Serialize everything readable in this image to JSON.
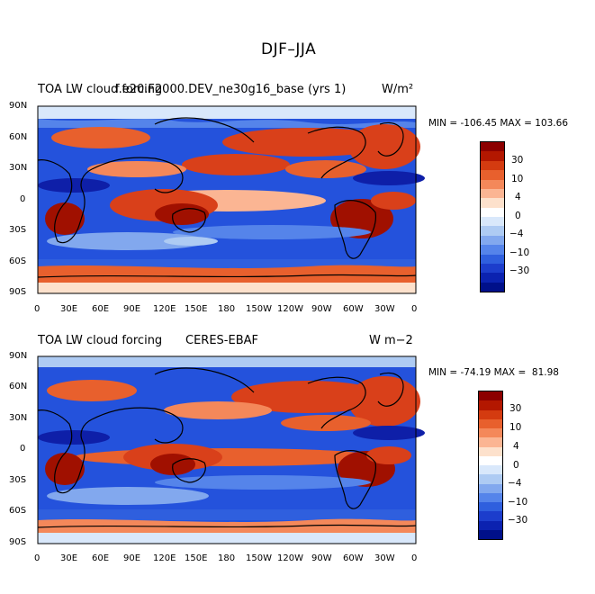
{
  "figure_title": "DJF–JJA",
  "panels": [
    {
      "left_label": "TOA LW cloud forcing",
      "center_label": "f.e20.F2000.DEV_ne30g16_base (yrs 1)",
      "units": "W/m²",
      "stats": "MIN = -106.45 MAX = 103.66",
      "lat_ticks": [
        "90N",
        "60N",
        "30N",
        "0",
        "30S",
        "60S",
        "90S"
      ],
      "lon_ticks": [
        "0",
        "30E",
        "60E",
        "90E",
        "120E",
        "150E",
        "180",
        "150W",
        "120W",
        "90W",
        "60W",
        "30W",
        "0"
      ],
      "colorbar_labels": [
        "30",
        "10",
        "4",
        "0",
        "−4",
        "−10",
        "−30"
      ]
    },
    {
      "left_label": "TOA LW cloud forcing",
      "center_label": "CERES-EBAF",
      "units": "W m−2",
      "stats": "MIN = -74.19 MAX =  81.98",
      "lat_ticks": [
        "90N",
        "60N",
        "30N",
        "0",
        "30S",
        "60S",
        "90S"
      ],
      "lon_ticks": [
        "0",
        "30E",
        "60E",
        "90E",
        "120E",
        "150E",
        "180",
        "150W",
        "120W",
        "90W",
        "60W",
        "30W",
        "0"
      ],
      "colorbar_labels": [
        "30",
        "10",
        "4",
        "0",
        "−4",
        "−10",
        "−30"
      ]
    }
  ],
  "colorbar_colors": [
    "#8c0000",
    "#b31700",
    "#d43b10",
    "#e8602d",
    "#f4885a",
    "#fbb593",
    "#fde1cc",
    "#ffffff",
    "#d9e8fb",
    "#aecbf3",
    "#82a8ee",
    "#5584ea",
    "#2f5fde",
    "#1c3dcc",
    "#0b22b0",
    "#00108a"
  ],
  "map_colors": {
    "red": "#d9401a",
    "deepred": "#a01000",
    "blue": "#2452dc",
    "deepblue": "#0e1fa8",
    "white": "#f8f4f2"
  }
}
